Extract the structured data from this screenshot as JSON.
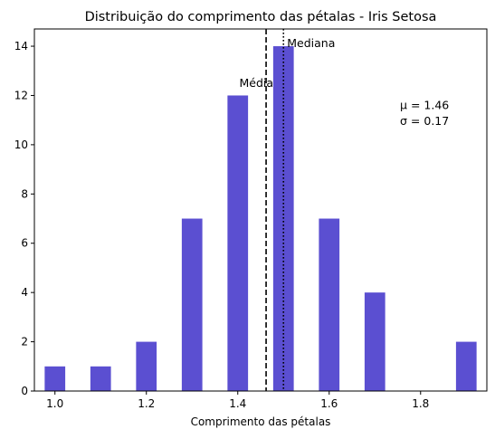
{
  "chart_data": {
    "type": "bar",
    "title": "Distribuição do comprimento das pétalas - Iris Setosa",
    "xlabel": "Comprimento das pétalas",
    "ylabel": "",
    "xlim": [
      0.955,
      1.945
    ],
    "ylim": [
      0,
      14.7
    ],
    "bar_width": 0.045,
    "bar_color": "#5b4fd1",
    "bars": [
      {
        "x": 1.0,
        "value": 1
      },
      {
        "x": 1.1,
        "value": 1
      },
      {
        "x": 1.2,
        "value": 2
      },
      {
        "x": 1.3,
        "value": 7
      },
      {
        "x": 1.4,
        "value": 12
      },
      {
        "x": 1.5,
        "value": 14
      },
      {
        "x": 1.6,
        "value": 7
      },
      {
        "x": 1.7,
        "value": 4
      },
      {
        "x": 1.9,
        "value": 2
      }
    ],
    "x_ticks": [
      {
        "value": 1.0,
        "label": "1.0"
      },
      {
        "value": 1.2,
        "label": "1.2"
      },
      {
        "value": 1.4,
        "label": "1.4"
      },
      {
        "value": 1.6,
        "label": "1.6"
      },
      {
        "value": 1.8,
        "label": "1.8"
      }
    ],
    "y_ticks": [
      {
        "value": 0,
        "label": "0"
      },
      {
        "value": 2,
        "label": "2"
      },
      {
        "value": 4,
        "label": "4"
      },
      {
        "value": 6,
        "label": "6"
      },
      {
        "value": 8,
        "label": "8"
      },
      {
        "value": 10,
        "label": "10"
      },
      {
        "value": 12,
        "label": "12"
      },
      {
        "value": 14,
        "label": "14"
      }
    ],
    "mean_line": {
      "x": 1.462,
      "label": "Média",
      "style": "dashed",
      "label_y": 12.5
    },
    "median_line": {
      "x": 1.5,
      "label": "Mediana",
      "style": "dotted",
      "label_y": 14.0
    },
    "stats_text": {
      "mu_label": "μ = 1.46",
      "sigma_label": "σ = 0.17",
      "x": 1.755,
      "mu_y": 11.6,
      "sigma_y": 10.95
    },
    "grid": false,
    "legend": "none"
  }
}
